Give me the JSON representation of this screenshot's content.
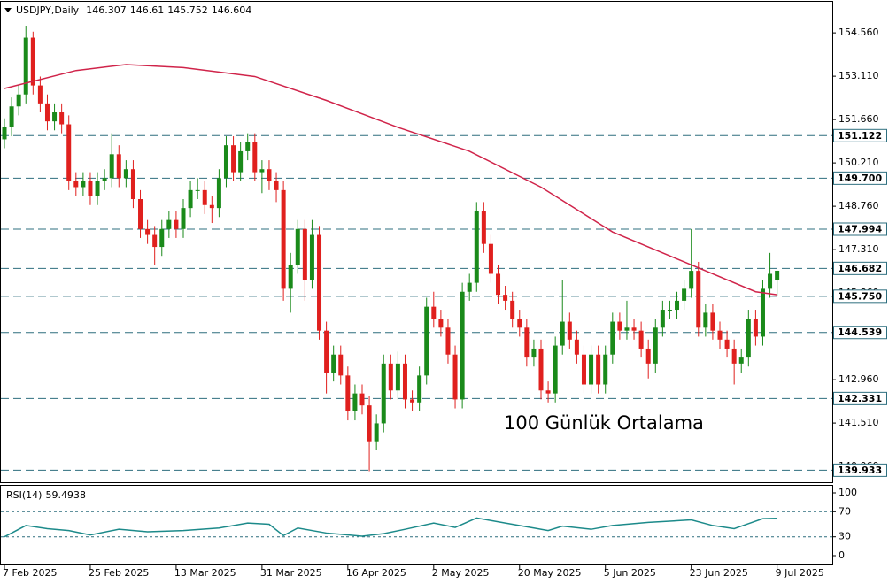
{
  "chart_data": [
    {
      "type": "candlestick",
      "title": "USDJPY,Daily",
      "up_color": "#1a8a1a",
      "down_color": "#e0201e",
      "ohlc": [
        [
          151.0,
          151.7,
          150.7,
          151.4
        ],
        [
          151.4,
          152.4,
          151.1,
          152.1
        ],
        [
          152.1,
          152.8,
          151.8,
          152.5
        ],
        [
          152.5,
          154.8,
          152.2,
          154.4
        ],
        [
          154.4,
          154.6,
          152.5,
          152.8
        ],
        [
          152.8,
          153.1,
          151.9,
          152.2
        ],
        [
          152.2,
          152.5,
          151.3,
          151.6
        ],
        [
          151.6,
          152.2,
          151.3,
          151.9
        ],
        [
          151.9,
          152.2,
          151.2,
          151.5
        ],
        [
          151.5,
          151.8,
          149.3,
          149.6
        ],
        [
          149.6,
          149.9,
          149.1,
          149.4
        ],
        [
          149.4,
          149.9,
          149.1,
          149.6
        ],
        [
          149.6,
          149.9,
          148.8,
          149.1
        ],
        [
          149.1,
          149.9,
          148.8,
          149.6
        ],
        [
          149.6,
          150.0,
          149.3,
          149.7
        ],
        [
          149.7,
          151.2,
          149.4,
          150.5
        ],
        [
          150.5,
          150.8,
          149.4,
          149.7
        ],
        [
          149.7,
          150.3,
          149.4,
          150.0
        ],
        [
          150.0,
          150.3,
          148.7,
          149.0
        ],
        [
          149.0,
          149.3,
          147.7,
          148.0
        ],
        [
          148.0,
          148.3,
          147.5,
          147.8
        ],
        [
          147.8,
          148.1,
          146.8,
          147.4
        ],
        [
          147.4,
          148.3,
          147.1,
          148.0
        ],
        [
          148.0,
          148.6,
          147.7,
          148.3
        ],
        [
          148.3,
          148.6,
          147.7,
          148.0
        ],
        [
          148.0,
          149.0,
          147.7,
          148.7
        ],
        [
          148.7,
          149.6,
          148.4,
          149.3
        ],
        [
          149.3,
          149.7,
          149.0,
          149.3
        ],
        [
          149.3,
          149.6,
          148.5,
          148.8
        ],
        [
          148.8,
          149.1,
          148.2,
          148.7
        ],
        [
          148.7,
          150.0,
          148.4,
          149.7
        ],
        [
          149.7,
          151.1,
          149.4,
          150.8
        ],
        [
          150.8,
          151.1,
          149.6,
          149.9
        ],
        [
          149.9,
          150.9,
          149.6,
          150.6
        ],
        [
          150.6,
          151.2,
          150.3,
          150.9
        ],
        [
          150.9,
          151.2,
          149.6,
          149.9
        ],
        [
          149.9,
          150.3,
          149.2,
          150.0
        ],
        [
          150.0,
          150.3,
          149.3,
          149.6
        ],
        [
          149.6,
          149.9,
          148.9,
          149.3
        ],
        [
          149.3,
          149.6,
          145.6,
          146.0
        ],
        [
          146.0,
          147.2,
          145.2,
          146.8
        ],
        [
          146.8,
          148.3,
          146.5,
          148.0
        ],
        [
          148.0,
          148.3,
          145.6,
          146.3
        ],
        [
          146.3,
          148.3,
          146.0,
          147.8
        ],
        [
          147.8,
          148.1,
          144.3,
          144.6
        ],
        [
          144.6,
          144.9,
          142.5,
          143.2
        ],
        [
          143.2,
          144.1,
          142.9,
          143.8
        ],
        [
          143.8,
          144.1,
          142.8,
          143.1
        ],
        [
          143.1,
          143.4,
          141.6,
          141.9
        ],
        [
          141.9,
          142.8,
          141.6,
          142.5
        ],
        [
          142.5,
          142.8,
          141.8,
          142.1
        ],
        [
          142.1,
          142.4,
          139.9,
          140.9
        ],
        [
          140.9,
          141.8,
          140.6,
          141.5
        ],
        [
          141.5,
          143.8,
          141.2,
          143.5
        ],
        [
          143.5,
          143.8,
          142.3,
          142.6
        ],
        [
          142.6,
          143.9,
          142.3,
          143.5
        ],
        [
          143.5,
          143.8,
          142.0,
          142.3
        ],
        [
          142.3,
          142.6,
          141.9,
          142.2
        ],
        [
          142.2,
          143.4,
          141.9,
          143.1
        ],
        [
          143.1,
          145.7,
          142.8,
          145.4
        ],
        [
          145.4,
          145.9,
          144.7,
          145.0
        ],
        [
          145.0,
          145.3,
          144.4,
          144.7
        ],
        [
          144.7,
          145.0,
          143.5,
          143.8
        ],
        [
          143.8,
          144.1,
          142.0,
          142.3
        ],
        [
          142.3,
          146.2,
          142.0,
          145.9
        ],
        [
          145.9,
          146.5,
          145.6,
          146.2
        ],
        [
          146.2,
          148.9,
          145.9,
          148.6
        ],
        [
          148.6,
          148.9,
          147.2,
          147.5
        ],
        [
          147.5,
          147.8,
          146.2,
          146.5
        ],
        [
          146.5,
          146.8,
          145.5,
          145.8
        ],
        [
          145.8,
          146.1,
          145.3,
          145.6
        ],
        [
          145.6,
          145.9,
          144.7,
          145.0
        ],
        [
          145.0,
          145.3,
          144.4,
          144.7
        ],
        [
          144.7,
          145.0,
          143.4,
          143.7
        ],
        [
          143.7,
          144.3,
          143.4,
          144.0
        ],
        [
          144.0,
          144.3,
          142.3,
          142.6
        ],
        [
          142.6,
          142.9,
          142.2,
          142.5
        ],
        [
          142.5,
          144.4,
          142.2,
          144.1
        ],
        [
          144.1,
          146.3,
          143.8,
          144.9
        ],
        [
          144.9,
          145.2,
          144.0,
          144.3
        ],
        [
          144.3,
          144.6,
          143.5,
          143.8
        ],
        [
          143.8,
          144.1,
          142.5,
          142.8
        ],
        [
          142.8,
          144.1,
          142.5,
          143.8
        ],
        [
          143.8,
          144.1,
          142.5,
          142.8
        ],
        [
          142.8,
          144.1,
          142.5,
          143.8
        ],
        [
          143.8,
          145.2,
          143.5,
          144.9
        ],
        [
          144.9,
          145.2,
          144.3,
          144.6
        ],
        [
          144.6,
          145.6,
          144.3,
          144.7
        ],
        [
          144.7,
          145.0,
          144.3,
          144.6
        ],
        [
          144.6,
          144.9,
          143.7,
          144.0
        ],
        [
          144.0,
          144.3,
          143.0,
          143.5
        ],
        [
          143.5,
          145.0,
          143.2,
          144.7
        ],
        [
          144.7,
          145.6,
          144.4,
          145.3
        ],
        [
          145.3,
          145.6,
          145.0,
          145.3
        ],
        [
          145.3,
          145.9,
          145.0,
          145.6
        ],
        [
          145.6,
          146.3,
          145.3,
          146.0
        ],
        [
          146.0,
          148.0,
          145.7,
          146.6
        ],
        [
          146.6,
          146.9,
          144.4,
          144.7
        ],
        [
          144.7,
          145.5,
          144.4,
          145.2
        ],
        [
          145.2,
          145.5,
          144.3,
          144.6
        ],
        [
          144.6,
          144.9,
          144.0,
          144.3
        ],
        [
          144.3,
          144.6,
          143.7,
          144.0
        ],
        [
          144.0,
          144.3,
          142.8,
          143.5
        ],
        [
          143.5,
          144.0,
          143.2,
          143.7
        ],
        [
          143.7,
          145.3,
          143.4,
          145.0
        ],
        [
          145.0,
          145.3,
          144.1,
          144.4
        ],
        [
          144.4,
          146.3,
          144.1,
          146.0
        ],
        [
          146.0,
          147.2,
          145.7,
          146.5
        ],
        [
          146.307,
          146.61,
          145.752,
          146.604
        ]
      ],
      "ma": {
        "color": "#d0244a",
        "x": [
          0,
          10,
          17,
          25,
          35,
          45,
          55,
          65,
          75,
          85,
          95,
          105,
          108
        ],
        "values": [
          152.7,
          153.3,
          153.5,
          153.4,
          153.1,
          152.3,
          151.4,
          150.6,
          149.4,
          147.9,
          146.9,
          145.9,
          145.8
        ]
      },
      "annotation": "100 Günlük Ortalama",
      "annotation_color": "#f05a14",
      "level_color": "#2e6f7f",
      "levels": [
        151.122,
        {
          "value": 149.7,
          "label": "149.700"
        },
        147.994,
        146.682,
        {
          "value": 145.75,
          "label": "145.750"
        },
        144.539,
        142.331,
        139.933
      ],
      "ylim": [
        139.53,
        155.57
      ],
      "yticks": [
        {
          "value": 154.56,
          "label": "154.560"
        },
        {
          "value": 153.11,
          "label": "153.110"
        },
        {
          "value": 151.66,
          "label": "151.660"
        },
        {
          "value": 150.21,
          "label": "150.210"
        },
        {
          "value": 148.76,
          "label": "148.760"
        },
        {
          "value": 147.31,
          "label": "147.310"
        },
        {
          "value": 145.86,
          "label": "145.860"
        },
        {
          "value": 144.41,
          "label": "144.410"
        },
        {
          "value": 142.96,
          "label": "142.960"
        },
        {
          "value": 141.51,
          "label": "141.510"
        },
        {
          "value": 140.06,
          "label": "140.060"
        }
      ],
      "xticks": [
        {
          "value": 0,
          "label": "7 Feb 2025"
        },
        {
          "value": 12,
          "label": "25 Feb 2025"
        },
        {
          "value": 24,
          "label": "13 Mar 2025"
        },
        {
          "value": 36,
          "label": "31 Mar 2025"
        },
        {
          "value": 48,
          "label": "16 Apr 2025"
        },
        {
          "value": 60,
          "label": "2 May 2025"
        },
        {
          "value": 72,
          "label": "20 May 2025"
        },
        {
          "value": 84,
          "label": "5 Jun 2025"
        },
        {
          "value": 96,
          "label": "23 Jun 2025"
        },
        {
          "value": 108,
          "label": "9 Jul 2025"
        }
      ]
    },
    {
      "type": "line",
      "title": "RSI(14)",
      "color": "#1c8a8a",
      "x": [
        0,
        3,
        6,
        9,
        12,
        16,
        20,
        25,
        30,
        34,
        37,
        39,
        41,
        45,
        50,
        53,
        56,
        60,
        63,
        66,
        70,
        74,
        76,
        78,
        82,
        85,
        90,
        96,
        99,
        102,
        104,
        106,
        108
      ],
      "values": [
        30,
        48,
        43,
        40,
        33,
        42,
        38,
        40,
        44,
        52,
        50,
        32,
        44,
        36,
        31,
        35,
        42,
        52,
        45,
        60,
        52,
        44,
        40,
        47,
        42,
        48,
        53,
        57,
        48,
        43,
        51,
        59,
        59.4938
      ],
      "ylim": [
        0,
        100
      ],
      "yticks": [
        100,
        70,
        30,
        0
      ]
    }
  ]
}
